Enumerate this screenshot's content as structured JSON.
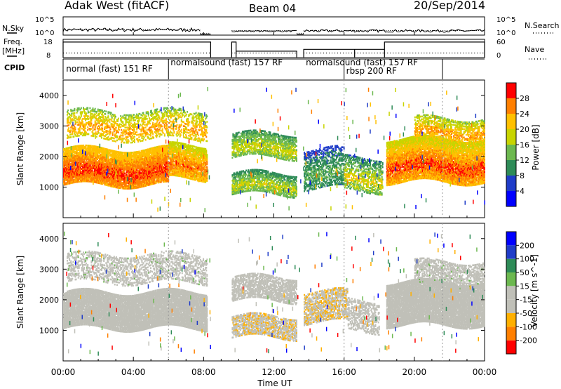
{
  "header": {
    "station": "Adak West (fitACF)",
    "beam": "Beam 04",
    "date": "20/Sep/2014"
  },
  "left_labels": {
    "nsky": "N.Sky",
    "freq": "Freq.",
    "freq_unit": "[MHz]",
    "cpid": "CPID"
  },
  "right_labels": {
    "nsearch": "N.Search",
    "nave": "Nave"
  },
  "colors": {
    "trace": "#000000",
    "no_data": "#ffffff"
  },
  "chart_data": [
    {
      "type": "line",
      "name": "noise",
      "left_axis": {
        "label": "N.Sky",
        "ticks": [
          "10^5",
          "10^0"
        ]
      },
      "right_axis": {
        "label": "N.Search",
        "ticks": [
          "10^5",
          "10^0"
        ]
      },
      "x_range_hours": [
        0,
        24
      ],
      "segments": [
        {
          "start": 0.0,
          "end": 7.8,
          "level": 0.25,
          "noise": 0.2
        },
        {
          "start": 7.8,
          "end": 8.4,
          "level": 0.05,
          "noise": 0
        },
        {
          "start": 9.6,
          "end": 13.3,
          "level": 0.2,
          "noise": 0.08
        },
        {
          "start": 13.3,
          "end": 13.7,
          "level": 0.05,
          "noise": 0
        },
        {
          "start": 13.7,
          "end": 24.0,
          "level": 0.2,
          "noise": 0.15
        }
      ]
    },
    {
      "type": "line",
      "name": "frequency",
      "left_axis": {
        "label": "Freq. [MHz]",
        "ticks": [
          "18",
          "8"
        ]
      },
      "right_axis": {
        "label": "Nave",
        "ticks": [
          "60",
          "0"
        ]
      },
      "x_range_hours": [
        0,
        24
      ],
      "freq_segments": [
        {
          "start": 0.0,
          "end": 8.4,
          "value": 0.85
        },
        {
          "start": 9.6,
          "end": 9.85,
          "value": 0.85
        },
        {
          "start": 9.85,
          "end": 13.3,
          "value": 0.35
        },
        {
          "start": 13.7,
          "end": 16.6,
          "value": 0.45
        },
        {
          "start": 16.6,
          "end": 18.3,
          "value": 0.45
        },
        {
          "start": 18.3,
          "end": 24.0,
          "value": 0.85
        }
      ],
      "nave_level": 0.25
    },
    {
      "type": "table",
      "name": "cpid",
      "label": "CPID",
      "entries": [
        {
          "start": 0.05,
          "end": 6.0,
          "text": "normal (fast) 151 RF"
        },
        {
          "start": 6.0,
          "end": 13.7,
          "text": "normalsound (fast) 157 RF"
        },
        {
          "start": 16.0,
          "end": 18.0,
          "text": "rbsp 200 RF"
        },
        {
          "start": 13.7,
          "end": 21.6,
          "text": "normalsound (fast) 157 RF"
        }
      ],
      "dividers": [
        6.0,
        16.0,
        21.6
      ]
    },
    {
      "type": "heatmap",
      "name": "power",
      "ylabel": "Slant Range [km]",
      "yticks": [
        1000,
        2000,
        3000,
        4000
      ],
      "ylim": [
        0,
        4500
      ],
      "colorbar": {
        "label": "Power [dB]",
        "ticks": [
          4,
          8,
          12,
          16,
          20,
          24,
          28
        ],
        "min": 0,
        "max": 32
      },
      "colors": [
        "#0000ff",
        "#1f3cc8",
        "#2e8b57",
        "#6cb84f",
        "#c8d400",
        "#ffc000",
        "#ff7f00",
        "#ff0000"
      ],
      "gaps": [
        [
          8.4,
          9.6
        ]
      ],
      "bands": [
        {
          "t0": 0.0,
          "t1": 6.0,
          "r0": 1100,
          "r1": 2300,
          "dbMin": 16,
          "dbMax": 30,
          "density": 0.85
        },
        {
          "t0": 6.0,
          "t1": 8.2,
          "r0": 1300,
          "r1": 2400,
          "dbMin": 12,
          "dbMax": 28,
          "density": 0.8
        },
        {
          "t0": 0.2,
          "t1": 8.2,
          "r0": 2600,
          "r1": 3500,
          "dbMin": 10,
          "dbMax": 26,
          "density": 0.35
        },
        {
          "t0": 9.6,
          "t1": 13.3,
          "r0": 2000,
          "r1": 2800,
          "dbMin": 6,
          "dbMax": 20,
          "density": 0.6
        },
        {
          "t0": 9.6,
          "t1": 13.3,
          "r0": 800,
          "r1": 1500,
          "dbMin": 4,
          "dbMax": 20,
          "density": 0.6
        },
        {
          "t0": 13.7,
          "t1": 16.0,
          "r0": 1000,
          "r1": 2300,
          "dbMin": 2,
          "dbMax": 14,
          "density": 0.45
        },
        {
          "t0": 16.0,
          "t1": 18.2,
          "r0": 900,
          "r1": 2000,
          "dbMin": 2,
          "dbMax": 22,
          "density": 0.45
        },
        {
          "t0": 18.4,
          "t1": 24.0,
          "r0": 1200,
          "r1": 2600,
          "dbMin": 12,
          "dbMax": 30,
          "density": 0.85
        },
        {
          "t0": 20.0,
          "t1": 24.0,
          "r0": 2500,
          "r1": 3300,
          "dbMin": 10,
          "dbMax": 26,
          "density": 0.5
        }
      ]
    },
    {
      "type": "heatmap",
      "name": "velocity",
      "ylabel": "Slant Range [km]",
      "yticks": [
        1000,
        2000,
        3000,
        4000
      ],
      "ylim": [
        0,
        4500
      ],
      "colorbar": {
        "label": "Velocity [m s^-1]",
        "ticks": [
          200,
          100,
          50,
          15,
          -15,
          -50,
          -100,
          -200
        ],
        "min": -250,
        "max": 250
      },
      "colors": [
        "#ff0000",
        "#ff7f00",
        "#ffb000",
        "#c0c0b8",
        "#c0c0b8",
        "#6cb84f",
        "#2e8b57",
        "#1f3cc8",
        "#0000ff"
      ],
      "gaps": [
        [
          8.4,
          9.6
        ]
      ],
      "bands": [
        {
          "t0": 0.0,
          "t1": 8.2,
          "r0": 1100,
          "r1": 2300,
          "vMin": -15,
          "vMax": 15,
          "density": 0.9
        },
        {
          "t0": 0.2,
          "t1": 8.2,
          "r0": 2600,
          "r1": 3500,
          "vMin": -30,
          "vMax": 30,
          "density": 0.35
        },
        {
          "t0": 9.6,
          "t1": 13.3,
          "r0": 2000,
          "r1": 2800,
          "vMin": -20,
          "vMax": 15,
          "density": 0.6
        },
        {
          "t0": 9.6,
          "t1": 13.3,
          "r0": 800,
          "r1": 1500,
          "vMin": -100,
          "vMax": -40,
          "density": 0.6
        },
        {
          "t0": 13.7,
          "t1": 16.2,
          "r0": 1300,
          "r1": 2300,
          "vMin": -100,
          "vMax": -40,
          "density": 0.55
        },
        {
          "t0": 16.2,
          "t1": 18.0,
          "r0": 1000,
          "r1": 2000,
          "vMin": -80,
          "vMax": -30,
          "density": 0.4
        },
        {
          "t0": 18.4,
          "t1": 24.0,
          "r0": 1200,
          "r1": 2600,
          "vMin": -15,
          "vMax": 15,
          "density": 0.9
        },
        {
          "t0": 20.0,
          "t1": 24.0,
          "r0": 2500,
          "r1": 3300,
          "vMin": -30,
          "vMax": 30,
          "density": 0.5
        }
      ]
    }
  ],
  "x_axis": {
    "label": "Time UT",
    "ticks": [
      "00:00",
      "04:00",
      "08:00",
      "12:00",
      "16:00",
      "20:00",
      "00:00"
    ]
  }
}
